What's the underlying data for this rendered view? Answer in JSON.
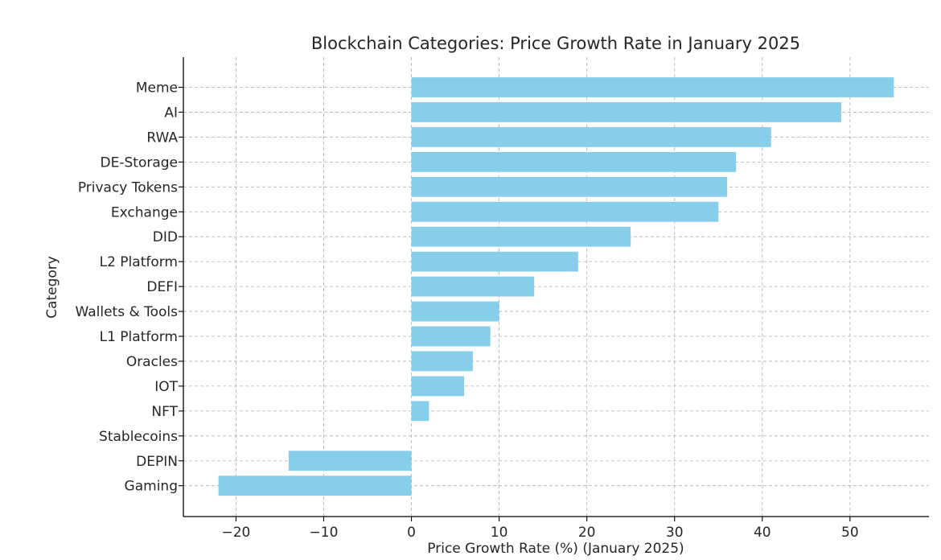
{
  "chart_data": {
    "type": "bar",
    "orientation": "horizontal",
    "title": "Blockchain Categories: Price Growth Rate in January 2025",
    "xlabel": "Price Growth Rate (%) (January 2025)",
    "ylabel": "Category",
    "categories": [
      "Meme",
      "AI",
      "RWA",
      "DE-Storage",
      "Privacy Tokens",
      "Exchange",
      "DID",
      "L2 Platform",
      "DEFI",
      "Wallets & Tools",
      "L1 Platform",
      "Oracles",
      "IOT",
      "NFT",
      "Stablecoins",
      "DEPIN",
      "Gaming"
    ],
    "values": [
      55,
      49,
      41,
      37,
      36,
      35,
      25,
      19,
      14,
      10,
      9,
      7,
      6,
      2,
      0,
      -14,
      -22
    ],
    "xlim": [
      -26,
      59
    ],
    "xticks": [
      -20,
      -10,
      0,
      10,
      20,
      30,
      40,
      50
    ],
    "xtick_labels": [
      "−20",
      "−10",
      "0",
      "10",
      "20",
      "30",
      "40",
      "50"
    ],
    "grid": true,
    "bar_color": "#87CEEB"
  }
}
